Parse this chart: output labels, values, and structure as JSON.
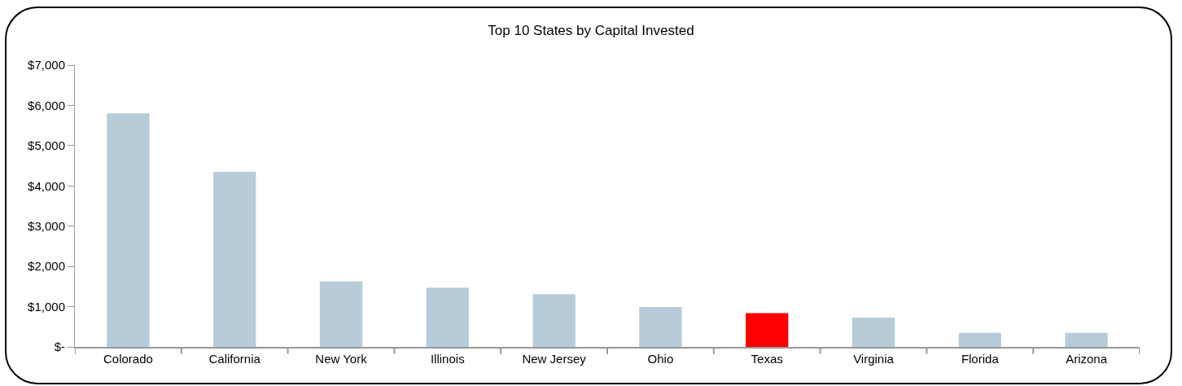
{
  "chart_data": {
    "type": "bar",
    "title": "Top 10 States by Capital Invested",
    "categories": [
      "Colorado",
      "California",
      "New York",
      "Illinois",
      "New Jersey",
      "Ohio",
      "Texas",
      "Virginia",
      "Florida",
      "Arizona"
    ],
    "values": [
      5800,
      4350,
      1630,
      1470,
      1310,
      990,
      840,
      730,
      350,
      350
    ],
    "colors": [
      "#b7ccd8",
      "#b7ccd8",
      "#b7ccd8",
      "#b7ccd8",
      "#b7ccd8",
      "#b7ccd8",
      "#ff0000",
      "#b7ccd8",
      "#b7ccd8",
      "#b7ccd8"
    ],
    "ylim": [
      0,
      7000
    ],
    "yticks": [
      {
        "value": 0,
        "label": "$-"
      },
      {
        "value": 1000,
        "label": "$1,000"
      },
      {
        "value": 2000,
        "label": "$2,000"
      },
      {
        "value": 3000,
        "label": "$3,000"
      },
      {
        "value": 4000,
        "label": "$4,000"
      },
      {
        "value": 5000,
        "label": "$5,000"
      },
      {
        "value": 6000,
        "label": "$6,000"
      },
      {
        "value": 7000,
        "label": "$7,000"
      }
    ],
    "grid": false
  }
}
